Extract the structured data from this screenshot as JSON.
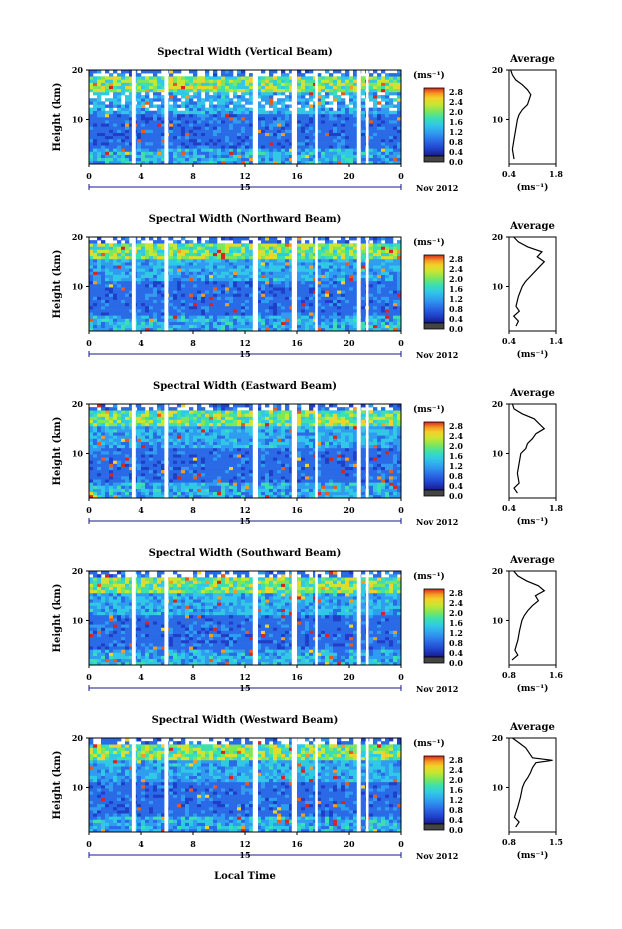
{
  "shared": {
    "y_label": "Height (km)",
    "y_ticks": [
      10,
      20
    ],
    "x_ticks": [
      "0",
      "4",
      "8",
      "12",
      "16",
      "20",
      "0"
    ],
    "day_label": "15",
    "date_label": "Nov 2012",
    "unit_label": "(ms⁻¹)",
    "colorbar_ticks": [
      "2.8",
      "2.4",
      "2.0",
      "1.6",
      "1.2",
      "0.8",
      "0.4",
      "0.0"
    ],
    "average_title": "Average",
    "x_axis_title": "Local Time",
    "colormap": [
      "#1a1a8a",
      "#1f3fc8",
      "#2b6ae6",
      "#2f9cf0",
      "#31c8e6",
      "#3be0b0",
      "#7ee65a",
      "#c8e632",
      "#f2d22a",
      "#f59a22",
      "#ea5a1e",
      "#d8261e"
    ]
  },
  "chart_data": [
    {
      "type": "heatmap",
      "title": "Spectral Width (Vertical Beam)",
      "x_range_hours": [
        0,
        24
      ],
      "y_range_km": [
        1,
        20
      ],
      "colorbar_range": [
        0.0,
        3.0
      ],
      "average": {
        "type": "line",
        "title": "Average",
        "x_ticks": [
          "0.4",
          "1.8"
        ],
        "xlim": [
          0.4,
          1.8
        ],
        "ylim": [
          1,
          20
        ],
        "height_km": [
          2,
          4,
          6,
          8,
          10,
          11,
          12,
          13,
          14,
          15,
          16,
          17,
          18,
          19,
          20
        ],
        "width": [
          0.55,
          0.5,
          0.55,
          0.6,
          0.65,
          0.7,
          0.8,
          0.95,
          1.0,
          1.05,
          0.95,
          0.8,
          0.6,
          0.5,
          0.45
        ]
      }
    },
    {
      "type": "heatmap",
      "title": "Spectral Width (Northward Beam)",
      "x_range_hours": [
        0,
        24
      ],
      "y_range_km": [
        1,
        20
      ],
      "colorbar_range": [
        0.0,
        3.0
      ],
      "average": {
        "type": "line",
        "title": "Average",
        "x_ticks": [
          "0.4",
          "1.4"
        ],
        "xlim": [
          0.4,
          1.4
        ],
        "ylim": [
          1,
          20
        ],
        "height_km": [
          2,
          3,
          4,
          5,
          6,
          8,
          10,
          11,
          12,
          13,
          14,
          15,
          16,
          17,
          18,
          19,
          20
        ],
        "width": [
          0.55,
          0.6,
          0.5,
          0.62,
          0.55,
          0.6,
          0.68,
          0.75,
          0.85,
          0.95,
          1.05,
          1.15,
          1.0,
          1.1,
          0.8,
          0.6,
          0.5
        ]
      }
    },
    {
      "type": "heatmap",
      "title": "Spectral Width (Eastward Beam)",
      "x_range_hours": [
        0,
        24
      ],
      "y_range_km": [
        1,
        20
      ],
      "colorbar_range": [
        0.0,
        3.0
      ],
      "average": {
        "type": "line",
        "title": "Average",
        "x_ticks": [
          "0.4",
          "1.8"
        ],
        "xlim": [
          0.4,
          1.8
        ],
        "ylim": [
          1,
          20
        ],
        "height_km": [
          2,
          3,
          4,
          6,
          8,
          10,
          11,
          12,
          13,
          14,
          15,
          16,
          17,
          18,
          19,
          20
        ],
        "width": [
          0.65,
          0.55,
          0.7,
          0.65,
          0.7,
          0.75,
          0.9,
          0.95,
          1.1,
          1.2,
          1.45,
          1.3,
          1.15,
          0.8,
          0.55,
          0.5
        ]
      }
    },
    {
      "type": "heatmap",
      "title": "Spectral Width (Southward Beam)",
      "x_range_hours": [
        0,
        24
      ],
      "y_range_km": [
        1,
        20
      ],
      "colorbar_range": [
        0.0,
        3.0
      ],
      "average": {
        "type": "line",
        "title": "Average",
        "x_ticks": [
          "0.8",
          "1.6"
        ],
        "xlim": [
          0.8,
          1.6
        ],
        "ylim": [
          1,
          20
        ],
        "height_km": [
          2,
          3,
          4,
          6,
          8,
          10,
          11,
          12,
          13,
          14,
          15,
          16,
          17,
          18,
          19,
          20
        ],
        "width": [
          0.85,
          0.95,
          0.9,
          0.95,
          0.98,
          1.02,
          1.06,
          1.12,
          1.2,
          1.3,
          1.25,
          1.4,
          1.3,
          1.1,
          0.95,
          0.88
        ]
      }
    },
    {
      "type": "heatmap",
      "title": "Spectral Width (Westward Beam)",
      "x_range_hours": [
        0,
        24
      ],
      "y_range_km": [
        1,
        20
      ],
      "colorbar_range": [
        0.0,
        3.0
      ],
      "average": {
        "type": "line",
        "title": "Average",
        "x_ticks": [
          "0.8",
          "1.5"
        ],
        "xlim": [
          0.8,
          1.5
        ],
        "ylim": [
          1,
          20
        ],
        "height_km": [
          2,
          3,
          4,
          6,
          8,
          10,
          11,
          12,
          13,
          14,
          15,
          15.5,
          16,
          17,
          18,
          19,
          20
        ],
        "width": [
          0.9,
          0.95,
          0.88,
          0.93,
          0.97,
          1.0,
          1.03,
          1.08,
          1.12,
          1.15,
          1.2,
          1.45,
          1.15,
          1.1,
          1.05,
          0.95,
          0.85
        ]
      }
    }
  ]
}
